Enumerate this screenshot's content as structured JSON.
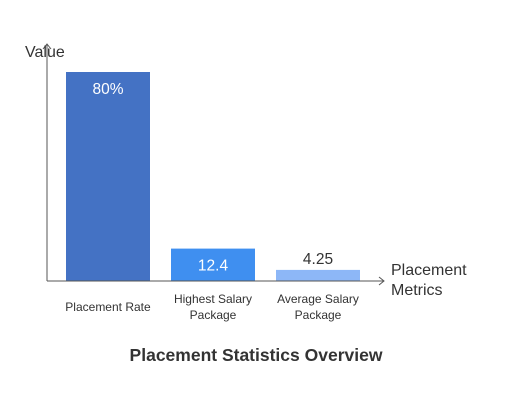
{
  "chart_data": {
    "type": "bar",
    "title": "Placement Statistics Overview",
    "xlabel": "Placement Metrics",
    "ylabel": "Value",
    "categories": [
      "Placement Rate",
      "Highest Salary Package",
      "Average Salary Package"
    ],
    "values": [
      80,
      12.4,
      4.25
    ],
    "data_labels": [
      "80%",
      "12.4",
      "4.25"
    ],
    "ylim": [
      0,
      80
    ],
    "grid": false,
    "legend": "none"
  },
  "colors": {
    "bars": [
      "#4472c4",
      "#3f8ff0",
      "#8db7f7"
    ],
    "axis": "#555555",
    "text": "#333333",
    "label_inside": "#ffffff",
    "label_outside": "#333333"
  }
}
